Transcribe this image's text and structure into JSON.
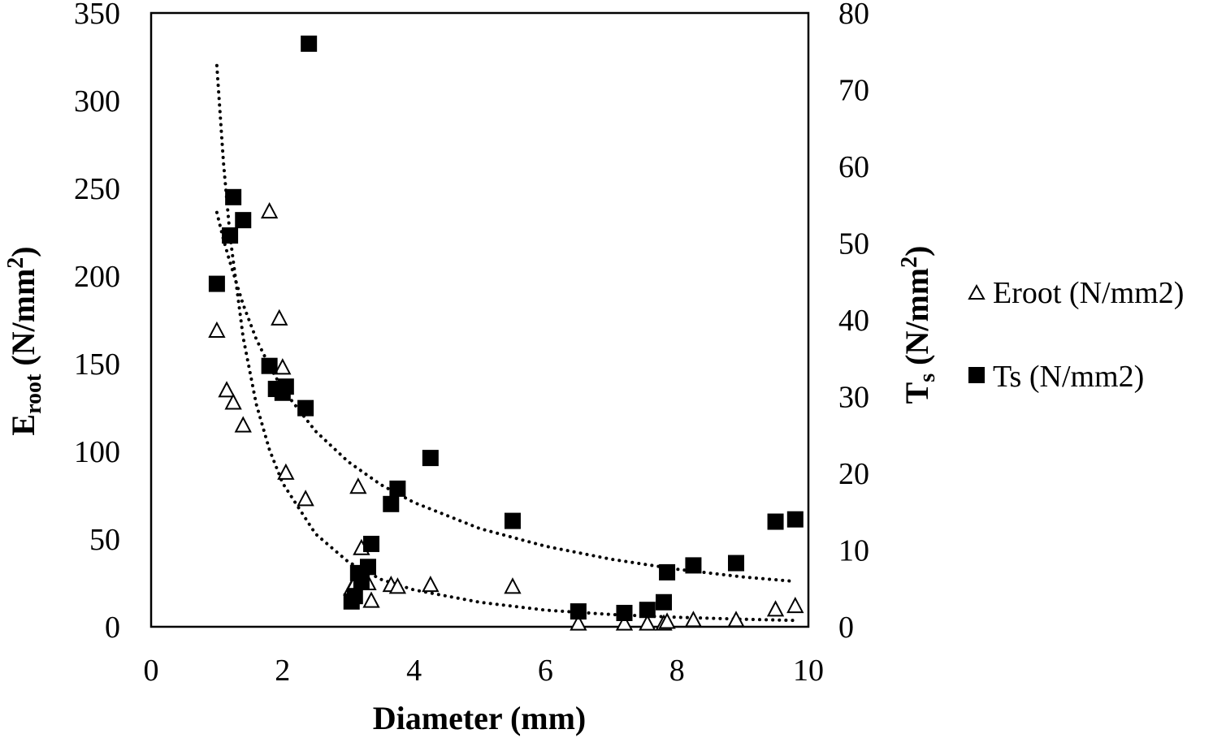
{
  "chart_data": {
    "type": "scatter",
    "x_axis": {
      "label": "Diameter (mm)",
      "range": [
        0,
        10
      ],
      "ticks": [
        "0",
        "2",
        "4",
        "6",
        "8",
        "10"
      ]
    },
    "y_left": {
      "label_main": "E",
      "label_sub": "root",
      "label_unit": " (N/mm",
      "label_sup": "2",
      "label_close": ")",
      "range": [
        0,
        350
      ],
      "ticks": [
        "0",
        "50",
        "100",
        "150",
        "200",
        "250",
        "300",
        "350"
      ]
    },
    "y_right": {
      "label_main": "T",
      "label_sub": "s",
      "label_unit": " (N/mm",
      "label_sup": "2",
      "label_close": ")",
      "range": [
        0,
        80
      ],
      "ticks": [
        "0",
        "10",
        "20",
        "30",
        "40",
        "50",
        "60",
        "70",
        "80"
      ]
    },
    "legend": {
      "placement": "right",
      "items": [
        "Eroot (N/mm2)",
        "Ts (N/mm2)"
      ]
    },
    "grid": false,
    "series": [
      {
        "name": "Eroot (N/mm2)",
        "axis": "left",
        "marker": "triangle-open",
        "points": [
          [
            1.0,
            169
          ],
          [
            1.15,
            135
          ],
          [
            1.25,
            128
          ],
          [
            1.4,
            115
          ],
          [
            1.8,
            237
          ],
          [
            1.95,
            176
          ],
          [
            2.0,
            148
          ],
          [
            2.05,
            88
          ],
          [
            2.35,
            73
          ],
          [
            3.05,
            22
          ],
          [
            3.1,
            25
          ],
          [
            3.15,
            80
          ],
          [
            3.2,
            45
          ],
          [
            3.3,
            25
          ],
          [
            3.35,
            15
          ],
          [
            3.65,
            24
          ],
          [
            3.75,
            23
          ],
          [
            4.25,
            24
          ],
          [
            5.5,
            23
          ],
          [
            6.5,
            2
          ],
          [
            7.2,
            2
          ],
          [
            7.55,
            2
          ],
          [
            7.8,
            2
          ],
          [
            7.85,
            3
          ],
          [
            8.25,
            4
          ],
          [
            8.9,
            4
          ],
          [
            9.5,
            10
          ],
          [
            9.8,
            12
          ]
        ],
        "trendline": {
          "type": "power",
          "style": "dotted",
          "points": [
            [
              1.0,
              320
            ],
            [
              1.1,
              265
            ],
            [
              1.2,
              223
            ],
            [
              1.4,
              165
            ],
            [
              1.6,
              127
            ],
            [
              1.8,
              101
            ],
            [
              2.0,
              82
            ],
            [
              2.5,
              53
            ],
            [
              3.0,
              37
            ],
            [
              3.5,
              27
            ],
            [
              4.0,
              21
            ],
            [
              5.0,
              14
            ],
            [
              6.0,
              9.5
            ],
            [
              7.0,
              7
            ],
            [
              8.0,
              5.4
            ],
            [
              9.0,
              4.3
            ],
            [
              9.8,
              3.6
            ]
          ]
        }
      },
      {
        "name": "Ts (N/mm2)",
        "axis": "right",
        "marker": "square-filled",
        "points": [
          [
            1.0,
            44.7
          ],
          [
            1.2,
            51
          ],
          [
            1.25,
            56
          ],
          [
            1.4,
            53
          ],
          [
            1.8,
            34
          ],
          [
            1.9,
            31
          ],
          [
            2.0,
            30.5
          ],
          [
            2.05,
            31.3
          ],
          [
            2.35,
            28.5
          ],
          [
            2.4,
            76
          ],
          [
            3.05,
            3.3
          ],
          [
            3.1,
            4
          ],
          [
            3.15,
            7
          ],
          [
            3.2,
            6
          ],
          [
            3.3,
            7.8
          ],
          [
            3.35,
            10.8
          ],
          [
            3.65,
            16
          ],
          [
            3.75,
            18
          ],
          [
            4.25,
            22
          ],
          [
            5.5,
            13.8
          ],
          [
            6.5,
            2
          ],
          [
            7.2,
            1.8
          ],
          [
            7.55,
            2.2
          ],
          [
            7.8,
            3.2
          ],
          [
            7.85,
            7.1
          ],
          [
            8.25,
            8
          ],
          [
            8.9,
            8.3
          ],
          [
            9.5,
            13.7
          ],
          [
            9.8,
            14
          ]
        ],
        "trendline": {
          "type": "power",
          "style": "dotted",
          "points": [
            [
              1.0,
              54
            ],
            [
              1.1,
              50.5
            ],
            [
              1.2,
              47.5
            ],
            [
              1.4,
              42
            ],
            [
              1.6,
              37.5
            ],
            [
              1.8,
              34
            ],
            [
              2.0,
              31
            ],
            [
              2.5,
              25.5
            ],
            [
              3.0,
              21.5
            ],
            [
              3.5,
              18.5
            ],
            [
              4.0,
              16.2
            ],
            [
              5.0,
              12.8
            ],
            [
              6.0,
              10.5
            ],
            [
              7.0,
              8.8
            ],
            [
              8.0,
              7.5
            ],
            [
              9.0,
              6.5
            ],
            [
              9.8,
              5.9
            ]
          ]
        }
      }
    ]
  }
}
